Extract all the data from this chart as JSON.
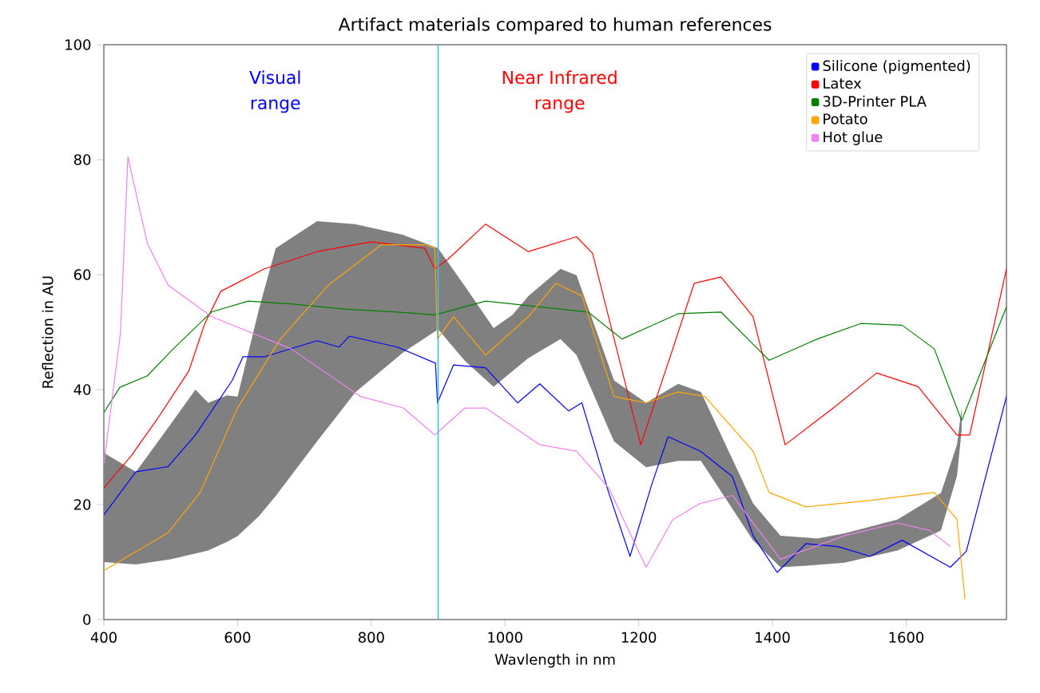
{
  "chart_data": {
    "type": "line",
    "title": "Artifact materials compared to human references",
    "xlabel": "Wavlength in nm",
    "ylabel": "Reflection in AU",
    "xlim": [
      400,
      1750
    ],
    "ylim": [
      0,
      100
    ],
    "xticks": [
      400,
      600,
      800,
      1000,
      1200,
      1400,
      1600
    ],
    "yticks": [
      0,
      20,
      40,
      60,
      80,
      100
    ],
    "legend": "top right",
    "annotations": [
      "Visual range",
      "Near Infrared range"
    ],
    "ref_lines": [
      {
        "axis": "x",
        "value": 900,
        "color": "#40bfe0"
      }
    ],
    "series": [
      {
        "type": "area",
        "color": "#808080",
        "x": [
          400,
          448,
          500,
          537,
          556,
          584,
          600,
          632,
          657,
          719,
          776,
          848,
          900,
          940,
          983,
          1011,
          1035,
          1083,
          1107,
          1163,
          1211,
          1259,
          1293,
          1371,
          1412,
          1467,
          1508,
          1587,
          1652,
          1676,
          1683
        ],
        "values": [
          null,
          null,
          null,
          null,
          null,
          null,
          null,
          null,
          null,
          null,
          null,
          null,
          null,
          null,
          null,
          null,
          null,
          null,
          null,
          null,
          null,
          null,
          null,
          null,
          null,
          null,
          null,
          null,
          null,
          null,
          null
        ],
        "upper": [
          29,
          25.7,
          34,
          40,
          37.7,
          39,
          38.8,
          54,
          64.6,
          69.3,
          68.8,
          66.9,
          64.6,
          58,
          50.7,
          53,
          56.3,
          61,
          59.9,
          41.6,
          37.7,
          41,
          39.6,
          20.2,
          14.6,
          14.1,
          15,
          17.4,
          22,
          30.4,
          36.8
        ],
        "lower": [
          10,
          9.6,
          10.5,
          11.5,
          12,
          13.5,
          14.5,
          18,
          21.5,
          31,
          39.5,
          46.5,
          50.5,
          45,
          40.5,
          43.2,
          45.5,
          48.8,
          46,
          31,
          26.5,
          27.6,
          27.6,
          13.8,
          9.1,
          9.5,
          9.9,
          12,
          15.5,
          25,
          33
        ]
      },
      {
        "name": "Silicone (pigmented)",
        "color": "#0000ff",
        "x": [
          400,
          448,
          496,
          537,
          592,
          608,
          640,
          719,
          752,
          767,
          839,
          896,
          899,
          923,
          971,
          1019,
          1052,
          1095,
          1115,
          1155,
          1187,
          1220,
          1244,
          1292,
          1340,
          1371,
          1407,
          1450,
          1498,
          1546,
          1594,
          1666,
          1690,
          1750
        ],
        "values": [
          18.2,
          25.7,
          26.6,
          32.1,
          41.6,
          45.7,
          45.7,
          48.5,
          47.4,
          49.3,
          47.4,
          44.6,
          37.7,
          44.3,
          43.8,
          37.7,
          41,
          36.3,
          37.7,
          22.1,
          11,
          23.7,
          31.8,
          29.3,
          24.9,
          14.6,
          8.2,
          13.2,
          12.7,
          11,
          13.8,
          9.1,
          11.9,
          38.8
        ]
      },
      {
        "name": "Latex",
        "color": "#ff0000",
        "x": [
          400,
          441,
          480,
          527,
          551,
          575,
          640,
          719,
          800,
          880,
          895,
          915,
          971,
          1035,
          1107,
          1131,
          1203,
          1251,
          1283,
          1323,
          1371,
          1419,
          1491,
          1556,
          1618,
          1676,
          1695,
          1750
        ],
        "values": [
          22.9,
          28.5,
          34.9,
          43.2,
          51.5,
          57.1,
          61,
          64,
          65.7,
          64.6,
          61,
          62.7,
          68.8,
          64,
          66.6,
          63.7,
          30.4,
          47.1,
          58.5,
          59.6,
          52.7,
          30.4,
          36.8,
          42.9,
          40.5,
          32.1,
          32.1,
          61
        ]
      },
      {
        "name": "3D-Printer PLA",
        "color": "#008000",
        "x": [
          400,
          424,
          465,
          503,
          561,
          616,
          680,
          760,
          839,
          895,
          971,
          1052,
          1124,
          1175,
          1211,
          1259,
          1323,
          1371,
          1395,
          1467,
          1532,
          1594,
          1642,
          1683,
          1750
        ],
        "values": [
          36,
          40.4,
          42.4,
          47,
          53.5,
          55.4,
          54.9,
          54,
          53.5,
          53,
          55.4,
          54.4,
          53.5,
          48.8,
          50.7,
          53.2,
          53.5,
          47.9,
          45.1,
          48.8,
          51.5,
          51.2,
          47.1,
          34.6,
          54.4
        ]
      },
      {
        "name": "Potato",
        "color": "#ffa500",
        "x": [
          400,
          496,
          544,
          600,
          664,
          736,
          815,
          880,
          895,
          899,
          923,
          971,
          1035,
          1076,
          1115,
          1163,
          1211,
          1259,
          1299,
          1371,
          1395,
          1450,
          1546,
          1642,
          1676,
          1688
        ],
        "values": [
          8.5,
          15.1,
          22.1,
          36.8,
          48.8,
          58.2,
          65.2,
          65.2,
          64.6,
          48.8,
          52.7,
          46,
          52.7,
          58.5,
          56.3,
          38.8,
          37.7,
          39.6,
          38.8,
          29.3,
          22.1,
          19.6,
          20.7,
          22.1,
          17.4,
          3.5
        ]
      },
      {
        "name": "Hot glue",
        "color": "#ee82ee",
        "x": [
          400,
          425,
          436,
          465,
          496,
          561,
          680,
          784,
          848,
          895,
          940,
          971,
          1052,
          1107,
          1155,
          1211,
          1251,
          1292,
          1340,
          1412,
          1508,
          1587,
          1635,
          1666
        ],
        "values": [
          27,
          50,
          80.5,
          65.5,
          58.2,
          52.7,
          47.1,
          38.8,
          36.8,
          32.1,
          36.8,
          36.8,
          30.4,
          29.3,
          22.9,
          9.1,
          17.4,
          20.2,
          21.6,
          10.5,
          14.6,
          16.8,
          15.5,
          12.7
        ]
      }
    ]
  }
}
